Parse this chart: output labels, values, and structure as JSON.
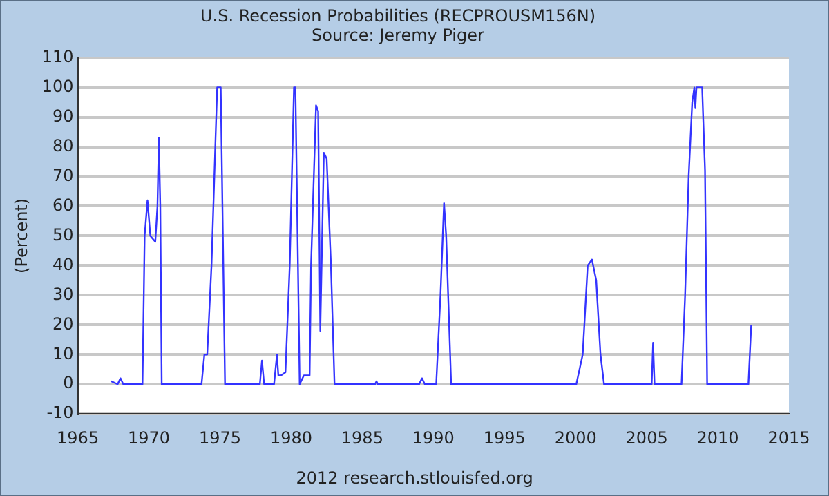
{
  "chart_data": {
    "type": "line",
    "title": "U.S. Recession Probabilities (RECPROUSM156N)",
    "subtitle": "Source: Jeremy Piger",
    "ylabel": "(Percent)",
    "annotations": [
      "2012 research.stlouisfed.org"
    ],
    "x": [
      1967.35,
      1967.8,
      1968.0,
      1968.2,
      1969.55,
      1969.7,
      1969.9,
      1970.1,
      1970.45,
      1970.6,
      1970.7,
      1970.8,
      1970.9,
      1971.2,
      1973.7,
      1973.9,
      1974.1,
      1974.4,
      1974.8,
      1975.05,
      1975.35,
      1977.8,
      1977.95,
      1978.1,
      1978.8,
      1978.9,
      1979.0,
      1979.1,
      1979.3,
      1979.6,
      1979.9,
      1980.2,
      1980.3,
      1980.6,
      1980.9,
      1981.3,
      1981.4,
      1981.75,
      1981.9,
      1982.05,
      1982.3,
      1982.5,
      1982.8,
      1983.05,
      1985.9,
      1986.0,
      1986.1,
      1989.0,
      1989.2,
      1989.4,
      1990.2,
      1990.5,
      1990.75,
      1990.9,
      1991.25,
      1991.5,
      2000.05,
      2000.5,
      2000.85,
      2001.15,
      2001.45,
      2001.75,
      2002.0,
      2005.35,
      2005.45,
      2005.55,
      2007.45,
      2007.7,
      2007.95,
      2008.2,
      2008.35,
      2008.42,
      2008.5,
      2008.9,
      2009.1,
      2009.25,
      2012.15,
      2012.35
    ],
    "series": [
      {
        "color": "#3333ff",
        "values": [
          1,
          0,
          2,
          0,
          0,
          50,
          62,
          50,
          48,
          60,
          83,
          60,
          0,
          0,
          0,
          10,
          10,
          40,
          100,
          100,
          0,
          0,
          8,
          0,
          0,
          5,
          10,
          3,
          3,
          4,
          40,
          100,
          100,
          0,
          3,
          3,
          40,
          94,
          92,
          18,
          78,
          76,
          40,
          0,
          0,
          1,
          0,
          0,
          2,
          0,
          0,
          30,
          61,
          50,
          0,
          0,
          0,
          10,
          40,
          42,
          35,
          10,
          0,
          0,
          14,
          0,
          0,
          30,
          70,
          95,
          100,
          93,
          100,
          100,
          72,
          0,
          0,
          20
        ]
      }
    ],
    "xlim": [
      1965,
      2015
    ],
    "xticks": [
      1965,
      1970,
      1975,
      1980,
      1985,
      1990,
      1995,
      2000,
      2005,
      2010,
      2015
    ],
    "ylim": [
      -10,
      110
    ],
    "yticks": [
      -10,
      0,
      10,
      20,
      30,
      40,
      50,
      60,
      70,
      80,
      90,
      100,
      110
    ],
    "grid": "y",
    "legend": false,
    "marker": "none",
    "line_style": "solid"
  }
}
